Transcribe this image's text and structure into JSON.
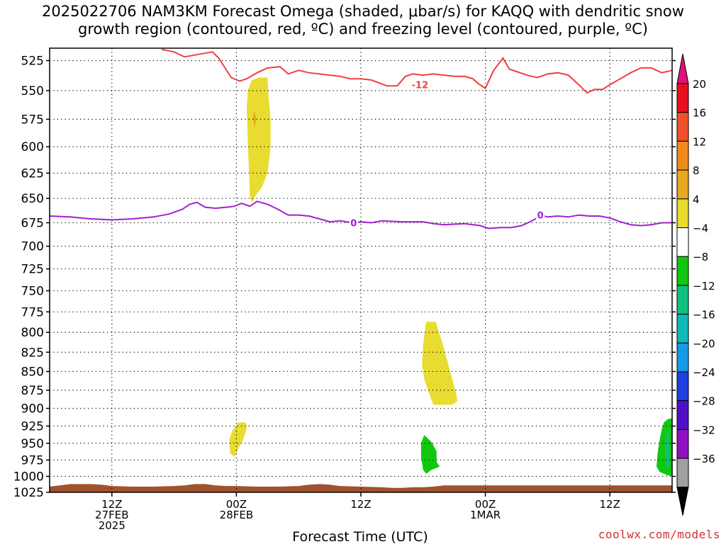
{
  "title_line1": "2025022706 NAM3KM Forecast Omega (shaded, μbar/s) for KAQQ with dendritic snow",
  "title_line2": "growth region (contoured, red, ºC) and freezing level (contoured, purple, ºC)",
  "credit": "coolwx.com/models",
  "chart_data": {
    "type": "heatmap",
    "xlabel": "Forecast Time (UTC)",
    "x_units": "hours since 2025-02-27 06Z",
    "xlim": [
      0,
      60
    ],
    "y_units": "hPa",
    "ylim": [
      1025,
      515
    ],
    "y_scale": "log",
    "y_ticks": [
      525,
      550,
      575,
      600,
      625,
      650,
      675,
      700,
      725,
      750,
      775,
      800,
      825,
      850,
      875,
      900,
      925,
      950,
      975,
      1000,
      1025
    ],
    "x_ticks": [
      {
        "x": 6,
        "lines": [
          "12Z",
          "27FEB",
          "2025"
        ]
      },
      {
        "x": 18,
        "lines": [
          "00Z",
          "28FEB"
        ]
      },
      {
        "x": 30,
        "lines": [
          "12Z"
        ]
      },
      {
        "x": 42,
        "lines": [
          "00Z",
          "1MAR"
        ]
      },
      {
        "x": 54,
        "lines": [
          "12Z"
        ]
      }
    ],
    "grid": "dotted",
    "colorbar": {
      "labels": [
        "20",
        "16",
        "12",
        "8",
        "4",
        "−4",
        "−8",
        "−12",
        "−16",
        "−20",
        "−24",
        "−28",
        "−32",
        "−36"
      ],
      "colors": [
        "#e8101e",
        "#f0502a",
        "#f08a1c",
        "#e8a820",
        "#e8dc30",
        "#ffffff",
        "#10c810",
        "#10c080",
        "#10b8b8",
        "#1898e8",
        "#2040e0",
        "#5010c8",
        "#9010c0",
        "#a0a0a0"
      ],
      "top_color": "#e0107c",
      "bottom_color": "#000000"
    },
    "dgz_contour": {
      "color": "#f04040",
      "label": "-12",
      "label_at": [
        35.7,
        545
      ],
      "points": [
        [
          10.8,
          516
        ],
        [
          12,
          518
        ],
        [
          13,
          522
        ],
        [
          14.3,
          520
        ],
        [
          15.7,
          518
        ],
        [
          16.3,
          523
        ],
        [
          17.5,
          539
        ],
        [
          18.3,
          542
        ],
        [
          19,
          540
        ],
        [
          20,
          535
        ],
        [
          21,
          531
        ],
        [
          22.2,
          530
        ],
        [
          23,
          536
        ],
        [
          24,
          533
        ],
        [
          25,
          535
        ],
        [
          26,
          536
        ],
        [
          27,
          537
        ],
        [
          28,
          538
        ],
        [
          29,
          540
        ],
        [
          30,
          540
        ],
        [
          31,
          541
        ],
        [
          32.5,
          546
        ],
        [
          33.5,
          546
        ],
        [
          34.3,
          538
        ],
        [
          35,
          536
        ],
        [
          36,
          537
        ],
        [
          37,
          536
        ],
        [
          38,
          537
        ],
        [
          39,
          538
        ],
        [
          40,
          538
        ],
        [
          40.8,
          540
        ],
        [
          41.3,
          544
        ],
        [
          42,
          548
        ],
        [
          42.8,
          533
        ],
        [
          43.7,
          523
        ],
        [
          44.3,
          532
        ],
        [
          45,
          534
        ],
        [
          46,
          537
        ],
        [
          47,
          539
        ],
        [
          48,
          536
        ],
        [
          49,
          535
        ],
        [
          50,
          537
        ],
        [
          51,
          545
        ],
        [
          51.8,
          552
        ],
        [
          52.5,
          549
        ],
        [
          53.3,
          549
        ],
        [
          54,
          545
        ],
        [
          55,
          540
        ],
        [
          56,
          535
        ],
        [
          57,
          531
        ],
        [
          58,
          531
        ],
        [
          59,
          535
        ],
        [
          60,
          533
        ]
      ]
    },
    "freezing_contour": {
      "color": "#a020d0",
      "label": "0",
      "label_at_1": [
        29.3,
        675
      ],
      "label_at_2": [
        47.3,
        667
      ],
      "points": [
        [
          0,
          668
        ],
        [
          2,
          669
        ],
        [
          4,
          671
        ],
        [
          6,
          672
        ],
        [
          8,
          671
        ],
        [
          10,
          669
        ],
        [
          11.5,
          666
        ],
        [
          12.8,
          661
        ],
        [
          13.5,
          656
        ],
        [
          14.2,
          654
        ],
        [
          15,
          659
        ],
        [
          16,
          660
        ],
        [
          17,
          659
        ],
        [
          17.8,
          658
        ],
        [
          18.5,
          655
        ],
        [
          19.3,
          658
        ],
        [
          20,
          653
        ],
        [
          21,
          656
        ],
        [
          22,
          661
        ],
        [
          23,
          667
        ],
        [
          24,
          667
        ],
        [
          25,
          668
        ],
        [
          26,
          671
        ],
        [
          27,
          674
        ],
        [
          28,
          673
        ],
        [
          29.3,
          675
        ],
        [
          30,
          674
        ],
        [
          31,
          675
        ],
        [
          32,
          673
        ],
        [
          34,
          674
        ],
        [
          36,
          674
        ],
        [
          37,
          676
        ],
        [
          38,
          677
        ],
        [
          40,
          676
        ],
        [
          41.5,
          678
        ],
        [
          42.3,
          681
        ],
        [
          43.5,
          680
        ],
        [
          44.5,
          680
        ],
        [
          45.5,
          678
        ],
        [
          46.3,
          674
        ],
        [
          47,
          670
        ],
        [
          47.3,
          667
        ],
        [
          48,
          669
        ],
        [
          49,
          668
        ],
        [
          50,
          669
        ],
        [
          51,
          667
        ],
        [
          52,
          668
        ],
        [
          53,
          668
        ],
        [
          54,
          670
        ],
        [
          55,
          674
        ],
        [
          56,
          677
        ],
        [
          57,
          678
        ],
        [
          58,
          677
        ],
        [
          59,
          675
        ],
        [
          60,
          675
        ]
      ]
    },
    "omega_regions": [
      {
        "value": "4 to 8",
        "color": "#e8dc30",
        "points": [
          [
            19.5,
            541
          ],
          [
            20.2,
            539
          ],
          [
            21,
            539
          ],
          [
            21.1,
            555
          ],
          [
            21.3,
            575
          ],
          [
            21.3,
            600
          ],
          [
            21.0,
            625
          ],
          [
            20.5,
            638
          ],
          [
            19.8,
            648
          ],
          [
            19.5,
            654
          ],
          [
            19.3,
            648
          ],
          [
            19.2,
            620
          ],
          [
            19.1,
            595
          ],
          [
            19.0,
            565
          ],
          [
            19.1,
            550
          ]
        ]
      },
      {
        "value": "8 to 12",
        "color": "#e8a820",
        "points": [
          [
            19.7,
            567
          ],
          [
            19.9,
            573
          ],
          [
            19.8,
            583
          ],
          [
            19.6,
            575
          ]
        ]
      },
      {
        "value": "4 to 8",
        "color": "#e8dc30",
        "points": [
          [
            36.3,
            787
          ],
          [
            37.2,
            787
          ],
          [
            37.9,
            815
          ],
          [
            38.5,
            845
          ],
          [
            38.9,
            865
          ],
          [
            39.2,
            880
          ],
          [
            39.3,
            890
          ],
          [
            38.8,
            895
          ],
          [
            37.0,
            895
          ],
          [
            36.6,
            880
          ],
          [
            36.1,
            860
          ],
          [
            35.9,
            840
          ],
          [
            36.0,
            815
          ],
          [
            36.2,
            795
          ]
        ]
      },
      {
        "value": "4 to 8",
        "color": "#e8dc30",
        "points": [
          [
            18.1,
            920
          ],
          [
            18.9,
            920
          ],
          [
            19.0,
            928
          ],
          [
            18.7,
            943
          ],
          [
            18.2,
            958
          ],
          [
            17.8,
            970
          ],
          [
            17.4,
            965
          ],
          [
            17.3,
            945
          ],
          [
            17.6,
            932
          ],
          [
            18.0,
            924
          ]
        ]
      },
      {
        "value": "-4 to -8",
        "color": "#10c810",
        "points": [
          [
            36.1,
            938
          ],
          [
            36.8,
            948
          ],
          [
            37.3,
            962
          ],
          [
            37.3,
            978
          ],
          [
            37.6,
            985
          ],
          [
            36.8,
            990
          ],
          [
            36.3,
            996
          ],
          [
            36.0,
            990
          ],
          [
            35.8,
            970
          ],
          [
            35.8,
            950
          ]
        ]
      },
      {
        "value": "-4 to -8",
        "color": "#10c810",
        "points": [
          [
            59.2,
            920
          ],
          [
            59.6,
            915
          ],
          [
            60,
            914
          ],
          [
            60,
            1000
          ],
          [
            59.5,
            998
          ],
          [
            58.8,
            993
          ],
          [
            58.5,
            985
          ],
          [
            58.6,
            965
          ],
          [
            58.8,
            945
          ],
          [
            59.0,
            930
          ]
        ]
      },
      {
        "value": "-8 to -12",
        "color": "#10c080",
        "points": [
          [
            59.5,
            935
          ],
          [
            59.7,
            930
          ],
          [
            59.7,
            990
          ],
          [
            59.4,
            980
          ],
          [
            59.3,
            955
          ]
        ]
      }
    ],
    "terrain": {
      "color": "#a0522d",
      "points": [
        [
          0,
          1016
        ],
        [
          1,
          1014
        ],
        [
          2,
          1012
        ],
        [
          4,
          1012
        ],
        [
          5,
          1013
        ],
        [
          6,
          1015
        ],
        [
          8,
          1016
        ],
        [
          10,
          1016
        ],
        [
          12,
          1015
        ],
        [
          13,
          1014
        ],
        [
          14,
          1012
        ],
        [
          15,
          1012
        ],
        [
          16,
          1014
        ],
        [
          17,
          1015
        ],
        [
          18,
          1015
        ],
        [
          20,
          1016
        ],
        [
          22,
          1016
        ],
        [
          24,
          1015
        ],
        [
          25,
          1013
        ],
        [
          26,
          1012
        ],
        [
          27,
          1013
        ],
        [
          28,
          1015
        ],
        [
          30,
          1016
        ],
        [
          32,
          1017
        ],
        [
          33,
          1018
        ],
        [
          34,
          1018
        ],
        [
          35,
          1017
        ],
        [
          36,
          1017
        ],
        [
          37,
          1016
        ],
        [
          38,
          1014
        ],
        [
          40,
          1014
        ],
        [
          42,
          1014
        ],
        [
          44,
          1014
        ],
        [
          46,
          1014
        ],
        [
          48,
          1014
        ],
        [
          50,
          1014
        ],
        [
          52,
          1014
        ],
        [
          54,
          1014
        ],
        [
          56,
          1014
        ],
        [
          58,
          1014
        ],
        [
          60,
          1014
        ]
      ]
    }
  }
}
